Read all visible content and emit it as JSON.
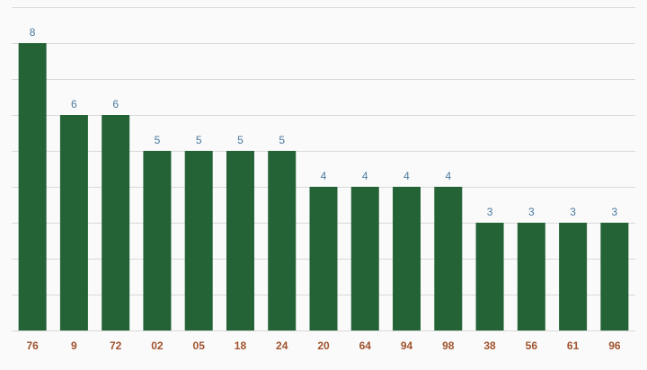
{
  "chart_data": {
    "type": "bar",
    "title": "",
    "xlabel": "",
    "ylabel": "",
    "categories": [
      "76",
      "9",
      "72",
      "02",
      "05",
      "18",
      "24",
      "20",
      "64",
      "94",
      "98",
      "38",
      "56",
      "61",
      "96"
    ],
    "values": [
      8,
      6,
      6,
      5,
      5,
      5,
      5,
      4,
      4,
      4,
      4,
      3,
      3,
      3,
      3
    ],
    "ylim": [
      0,
      9
    ],
    "grid": true,
    "legend": "none",
    "data_labels": true,
    "colors": {
      "bar": "#246336",
      "data_label": "#4a7aa0",
      "tick_label": "#a0522d",
      "grid": "#d9d9d9",
      "background": "#fafafa"
    }
  }
}
